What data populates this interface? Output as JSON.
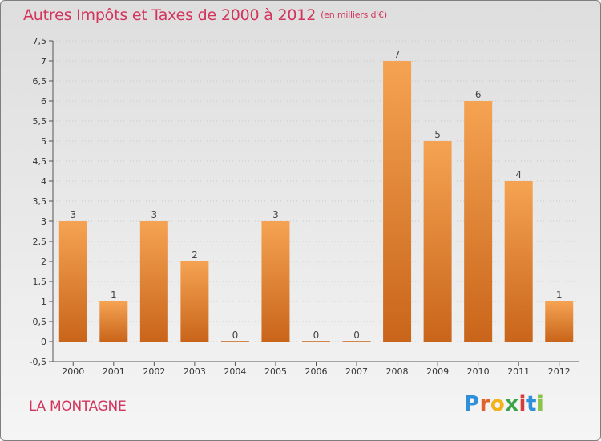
{
  "title": "Autres Impôts et Taxes de 2000 à 2012",
  "title_unit": "(en milliers d'€)",
  "commune": "LA MONTAGNE",
  "logo": {
    "letters": [
      "P",
      "r",
      "o",
      "x",
      "i",
      "t",
      "i"
    ],
    "colors": [
      "#2f8fd8",
      "#e2632a",
      "#f2b21a",
      "#3aa548",
      "#d83a3a",
      "#2f8fd8",
      "#8bc34a"
    ]
  },
  "colors": {
    "title": "#d2345c",
    "bar_top": "#f5a352",
    "bar_bottom": "#c9651a",
    "axis": "#555555",
    "grid": "#c8c8c8"
  },
  "chart_data": {
    "type": "bar",
    "title": "Autres Impôts et Taxes de 2000 à 2012",
    "xlabel": "",
    "ylabel": "",
    "categories": [
      "2000",
      "2001",
      "2002",
      "2003",
      "2004",
      "2005",
      "2006",
      "2007",
      "2008",
      "2009",
      "2010",
      "2011",
      "2012"
    ],
    "values": [
      3,
      1,
      3,
      2,
      0,
      3,
      0,
      0,
      7,
      5,
      6,
      4,
      1
    ],
    "data_labels": [
      "3",
      "1",
      "3",
      "2",
      "0",
      "3",
      "0",
      "0",
      "7",
      "5",
      "6",
      "4",
      "1"
    ],
    "ylim": [
      -0.5,
      7.5
    ],
    "yticks": [
      -0.5,
      0,
      0.5,
      1,
      1.5,
      2,
      2.5,
      3,
      3.5,
      4,
      4.5,
      5,
      5.5,
      6,
      6.5,
      7,
      7.5
    ],
    "ytick_labels": [
      "-0,5",
      "0",
      "0,5",
      "1",
      "1,5",
      "2",
      "2,5",
      "3",
      "3,5",
      "4",
      "4,5",
      "5",
      "5,5",
      "6",
      "6,5",
      "7",
      "7,5"
    ],
    "grid": true,
    "legend": "none"
  }
}
